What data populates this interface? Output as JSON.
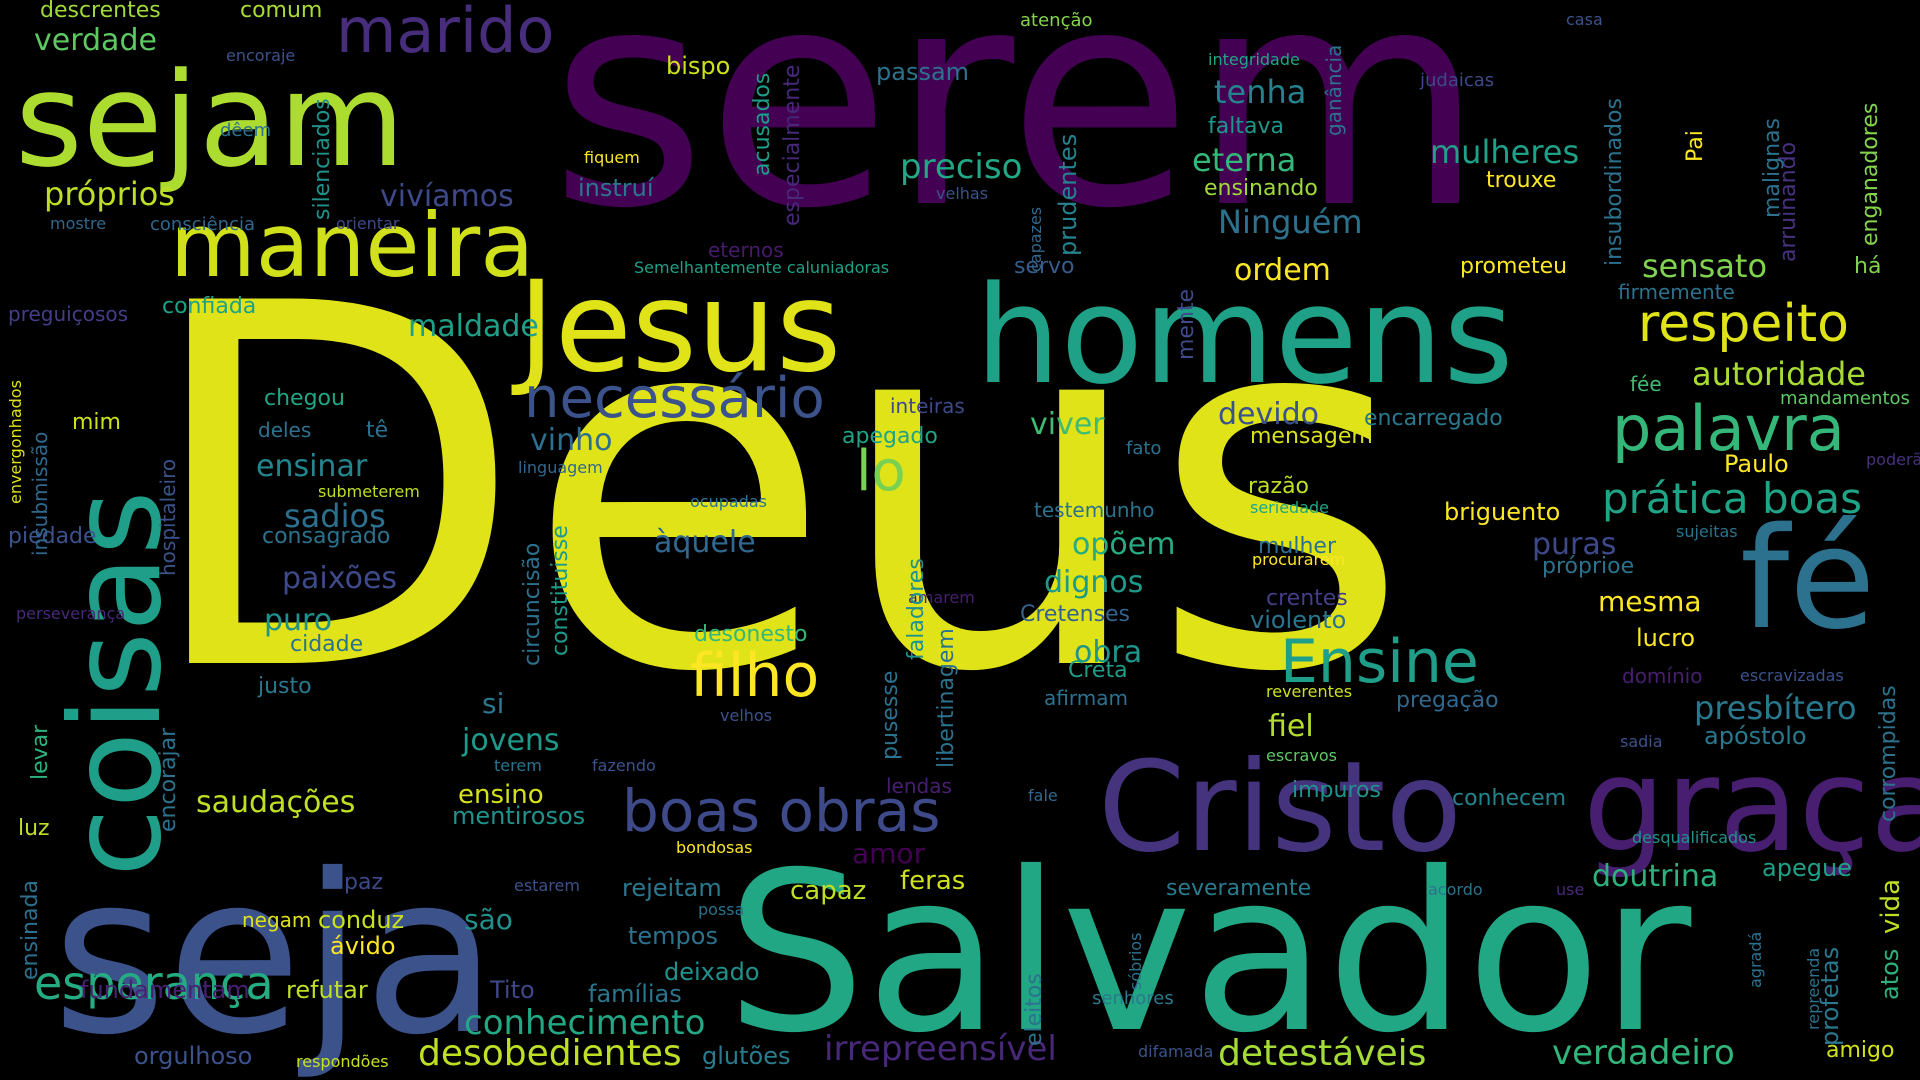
{
  "words": [
    {
      "t": "Deus",
      "c": "#dfe318"
    },
    {
      "t": "serem",
      "c": "#440154"
    },
    {
      "t": "Salvador",
      "c": "#22a785"
    },
    {
      "t": "seja",
      "c": "#3b528b"
    },
    {
      "t": "sejam",
      "c": "#addc30"
    },
    {
      "t": "homens",
      "c": "#1fa187"
    },
    {
      "t": "Jesus",
      "c": "#dfe318"
    },
    {
      "t": "coisas",
      "c": "#1f9e89"
    },
    {
      "t": "fé",
      "c": "#2c728e"
    },
    {
      "t": "graça",
      "c": "#481f70"
    },
    {
      "t": "Cristo",
      "c": "#46337e"
    },
    {
      "t": "maneira",
      "c": "#d0e11c"
    },
    {
      "t": "marido",
      "c": "#472d7b"
    },
    {
      "t": "necessário",
      "c": "#3b528b"
    },
    {
      "t": "boas obras",
      "c": "#3e4a89"
    },
    {
      "t": "filho",
      "c": "#fde725"
    },
    {
      "t": "palavra",
      "c": "#35b779"
    },
    {
      "t": "respeito",
      "c": "#dfe318"
    },
    {
      "t": "Ensine",
      "c": "#1f9e89"
    },
    {
      "t": "prática boas",
      "c": "#20a486"
    },
    {
      "t": "esperança",
      "c": "#25ac82"
    },
    {
      "t": "lo",
      "c": "#7ad151"
    },
    {
      "t": "desobedientes",
      "c": "#bddf26"
    },
    {
      "t": "conhecimento",
      "c": "#22a884"
    },
    {
      "t": "detestáveis",
      "c": "#a5db36"
    },
    {
      "t": "verdadeiro",
      "c": "#31b57b"
    },
    {
      "t": "irrepreensível",
      "c": "#482878"
    },
    {
      "t": "autoridade",
      "c": "#a8db34"
    },
    {
      "t": "presbítero",
      "c": "#2a788e"
    },
    {
      "t": "sensato",
      "c": "#7fd34e"
    },
    {
      "t": "mulheres",
      "c": "#1fa088"
    },
    {
      "t": "eterna",
      "c": "#35b779"
    },
    {
      "t": "Ninguém",
      "c": "#2c728e"
    },
    {
      "t": "tenha",
      "c": "#26828e"
    },
    {
      "t": "preciso",
      "c": "#22a884"
    },
    {
      "t": "vivíamos",
      "c": "#3e4989"
    },
    {
      "t": "próprios",
      "c": "#bddf26"
    },
    {
      "t": "verdade",
      "c": "#5ec962"
    },
    {
      "t": "ordem",
      "c": "#fde725"
    },
    {
      "t": "viver",
      "c": "#3fbc73"
    },
    {
      "t": "devido",
      "c": "#3b528b"
    },
    {
      "t": "vinho",
      "c": "#2e6e8e"
    },
    {
      "t": "opõem",
      "c": "#25ac82"
    },
    {
      "t": "dignos",
      "c": "#1f9a8a"
    },
    {
      "t": "àquele",
      "c": "#31688e"
    },
    {
      "t": "sadios",
      "c": "#2d708e"
    },
    {
      "t": "ensinar",
      "c": "#25858e"
    },
    {
      "t": "paixões",
      "c": "#3e4a89"
    },
    {
      "t": "puro",
      "c": "#21918c"
    },
    {
      "t": "obra",
      "c": "#1f968b"
    },
    {
      "t": "doutrina",
      "c": "#2db27d"
    },
    {
      "t": "mesma",
      "c": "#fde725"
    },
    {
      "t": "fiel",
      "c": "#b5de2b"
    },
    {
      "t": "saudações",
      "c": "#c2df23"
    },
    {
      "t": "maldade",
      "c": "#1f9f88"
    },
    {
      "t": "jovens",
      "c": "#1f9a8a"
    },
    {
      "t": "ensino",
      "c": "#d5e21a"
    },
    {
      "t": "si",
      "c": "#2a778e"
    },
    {
      "t": "são",
      "c": "#21918c"
    },
    {
      "t": "amor",
      "c": "#440154"
    },
    {
      "t": "feras",
      "c": "#cde11d"
    },
    {
      "t": "capaz",
      "c": "#bddf26"
    },
    {
      "t": "tempos",
      "c": "#2c728e"
    },
    {
      "t": "rejeitam",
      "c": "#2a788e"
    },
    {
      "t": "mentirosos",
      "c": "#20928c"
    },
    {
      "t": "deixado",
      "c": "#20928c"
    },
    {
      "t": "famílias",
      "c": "#2a768e"
    },
    {
      "t": "Tito",
      "c": "#3f4788"
    },
    {
      "t": "refutar",
      "c": "#bddf26"
    },
    {
      "t": "fundamentam",
      "c": "#482173"
    },
    {
      "t": "orgulhoso",
      "c": "#3b528b"
    },
    {
      "t": "glutões",
      "c": "#287c8e"
    },
    {
      "t": "ávido",
      "c": "#fde725"
    },
    {
      "t": "conduz",
      "c": "#c8e020"
    },
    {
      "t": "negam",
      "c": "#dde318"
    },
    {
      "t": "paz",
      "c": "#3e4989"
    },
    {
      "t": "luz",
      "c": "#bddf26"
    },
    {
      "t": "levar",
      "c": "#2db27d"
    },
    {
      "t": "encorajar",
      "c": "#2c728e"
    },
    {
      "t": "ensinada",
      "c": "#2d708e"
    },
    {
      "t": "Paulo",
      "c": "#fde725"
    },
    {
      "t": "puras",
      "c": "#3e4989"
    },
    {
      "t": "lucro",
      "c": "#fde725"
    },
    {
      "t": "apóstolo",
      "c": "#2a788e"
    },
    {
      "t": "apegue",
      "c": "#1fa187"
    },
    {
      "t": "amigo",
      "c": "#d2e21b"
    },
    {
      "t": "atos",
      "c": "#2db27d"
    },
    {
      "t": "vida",
      "c": "#bddf26"
    },
    {
      "t": "profetas",
      "c": "#2a788e"
    },
    {
      "t": "briguento",
      "c": "#fde725"
    },
    {
      "t": "violento",
      "c": "#2b748e"
    },
    {
      "t": "crentes",
      "c": "#433e85"
    },
    {
      "t": "Cretenses",
      "c": "#33638d"
    },
    {
      "t": "Creta",
      "c": "#1f9e89"
    },
    {
      "t": "afirmam",
      "c": "#2c728e"
    },
    {
      "t": "razão",
      "c": "#c2df23"
    },
    {
      "t": "mulher",
      "c": "#2c728e"
    },
    {
      "t": "mensagem",
      "c": "#d8e219"
    },
    {
      "t": "encarregado",
      "c": "#2a788e"
    },
    {
      "t": "prometeu",
      "c": "#fde725"
    },
    {
      "t": "firmemente",
      "c": "#2c728e"
    },
    {
      "t": "ensinando",
      "c": "#9fda3a"
    },
    {
      "t": "faltava",
      "c": "#1f968b"
    },
    {
      "t": "trouxe",
      "c": "#fde725"
    },
    {
      "t": "judaicas",
      "c": "#3e4989"
    },
    {
      "t": "integridade",
      "c": "#21a685"
    },
    {
      "t": "casa",
      "c": "#3b528b"
    },
    {
      "t": "atenção",
      "c": "#84d44b"
    },
    {
      "t": "passam",
      "c": "#2c728e"
    },
    {
      "t": "bispo",
      "c": "#cde11d"
    },
    {
      "t": "instruí",
      "c": "#2a788e"
    },
    {
      "t": "fiquem",
      "c": "#fde725"
    },
    {
      "t": "velhas",
      "c": "#3b528b"
    },
    {
      "t": "comum",
      "c": "#a8db34"
    },
    {
      "t": "descrentes",
      "c": "#9fda3a"
    },
    {
      "t": "encoraje",
      "c": "#3b528b"
    },
    {
      "t": "dêem",
      "c": "#2c728e"
    },
    {
      "t": "mostre",
      "c": "#31688e"
    },
    {
      "t": "consciência",
      "c": "#31688e"
    },
    {
      "t": "orientar",
      "c": "#3e4989"
    },
    {
      "t": "confiada",
      "c": "#1fa187"
    },
    {
      "t": "preguiçosos",
      "c": "#433e85"
    },
    {
      "t": "Semelhantemente caluniadoras",
      "c": "#1fa187"
    },
    {
      "t": "eternos",
      "c": "#481a6c"
    },
    {
      "t": "servo",
      "c": "#365c8d"
    },
    {
      "t": "mente",
      "c": "#3e4a89"
    },
    {
      "t": "há",
      "c": "#7fd34e"
    },
    {
      "t": "fée",
      "c": "#3fbc73"
    },
    {
      "t": "mandamentos",
      "c": "#5ec962"
    },
    {
      "t": "poderão",
      "c": "#46327e"
    },
    {
      "t": "seriedade",
      "c": "#21a685"
    },
    {
      "t": "sujeitas",
      "c": "#2c728e"
    },
    {
      "t": "procurarem",
      "c": "#fde725"
    },
    {
      "t": "próprioe",
      "c": "#2c728e"
    },
    {
      "t": "domínio",
      "c": "#481f70"
    },
    {
      "t": "escravizadas",
      "c": "#3b528b"
    },
    {
      "t": "reverentes",
      "c": "#cde11d"
    },
    {
      "t": "pregação",
      "c": "#31688e"
    },
    {
      "t": "escravos",
      "c": "#5ec962"
    },
    {
      "t": "impuros",
      "c": "#20928c"
    },
    {
      "t": "conhecem",
      "c": "#25838e"
    },
    {
      "t": "sadia",
      "c": "#3b528b"
    },
    {
      "t": "desqualificados",
      "c": "#20928c"
    },
    {
      "t": "acordo",
      "c": "#2c728e"
    },
    {
      "t": "use",
      "c": "#482878"
    },
    {
      "t": "severamente",
      "c": "#287c8e"
    },
    {
      "t": "senhores",
      "c": "#2a788e"
    },
    {
      "t": "difamada",
      "c": "#3b528b"
    },
    {
      "t": "respondões",
      "c": "#c8e020"
    },
    {
      "t": "chegou",
      "c": "#21a685"
    },
    {
      "t": "deles",
      "c": "#2c728e"
    },
    {
      "t": "tê",
      "c": "#2c728e"
    },
    {
      "t": "mim",
      "c": "#cde11d"
    },
    {
      "t": "consagrado",
      "c": "#2c728e"
    },
    {
      "t": "cidade",
      "c": "#2c728e"
    },
    {
      "t": "piedade",
      "c": "#3b528b"
    },
    {
      "t": "perseverança",
      "c": "#482878"
    },
    {
      "t": "justo",
      "c": "#2a788e"
    },
    {
      "t": "apegado",
      "c": "#20a486"
    },
    {
      "t": "inteiras",
      "c": "#3e4989"
    },
    {
      "t": "fato",
      "c": "#2c728e"
    },
    {
      "t": "testemunho",
      "c": "#2c728e"
    },
    {
      "t": "linguagem",
      "c": "#31688e"
    },
    {
      "t": "ocupadas",
      "c": "#2c728e"
    },
    {
      "t": "submeterem",
      "c": "#bddf26"
    },
    {
      "t": "desonesto",
      "c": "#35b779"
    },
    {
      "t": "terem",
      "c": "#2c728e"
    },
    {
      "t": "fazendo",
      "c": "#3b528b"
    },
    {
      "t": "velhos",
      "c": "#3b528b"
    },
    {
      "t": "lendas",
      "c": "#481f70"
    },
    {
      "t": "fale",
      "c": "#31688e"
    },
    {
      "t": "bondosas",
      "c": "#fde725"
    },
    {
      "t": "estarem",
      "c": "#3b528b"
    },
    {
      "t": "possa",
      "c": "#2c728e"
    },
    {
      "t": "amarem",
      "c": "#481f70"
    },
    {
      "t": "eleitos",
      "c": "#2c728e"
    },
    {
      "t": "sóbrios",
      "c": "#2c728e"
    },
    {
      "t": "agradá",
      "c": "#2c728e"
    },
    {
      "t": "repreenda",
      "c": "#2c728e"
    },
    {
      "t": "capazes",
      "c": "#31688e"
    },
    {
      "t": "silenciados",
      "c": "#20928c"
    },
    {
      "t": "acusados",
      "c": "#1f9e89"
    },
    {
      "t": "especialmente",
      "c": "#482878"
    },
    {
      "t": "prudentes",
      "c": "#26828e"
    },
    {
      "t": "ganância",
      "c": "#2c728e"
    },
    {
      "t": "insubordinados",
      "c": "#2c728e"
    },
    {
      "t": "Pai",
      "c": "#fde725"
    },
    {
      "t": "arruinando",
      "c": "#46327e"
    },
    {
      "t": "malignas",
      "c": "#2c728e"
    },
    {
      "t": "enganadores",
      "c": "#84d44b"
    },
    {
      "t": "envergonhados",
      "c": "#dfe318"
    },
    {
      "t": "insubmissão",
      "c": "#31688e"
    },
    {
      "t": "hospitaleiro",
      "c": "#3b528b"
    },
    {
      "t": "circuncisão",
      "c": "#2c728e"
    },
    {
      "t": "constituisse",
      "c": "#1f9a8a"
    },
    {
      "t": "faladores",
      "c": "#21918c"
    },
    {
      "t": "pusesse",
      "c": "#2c728e"
    },
    {
      "t": "libertinagem",
      "c": "#2c728e"
    },
    {
      "t": "corrompidas",
      "c": "#2c728e"
    }
  ]
}
